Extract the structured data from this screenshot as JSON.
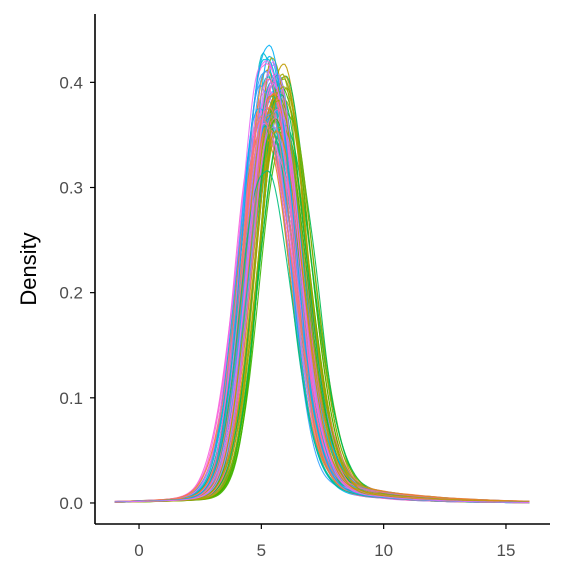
{
  "chart_data": {
    "type": "line",
    "title": "",
    "xlabel": "",
    "ylabel": "Density",
    "xlim": [
      -1.8,
      16.8
    ],
    "ylim": [
      -0.02,
      0.465
    ],
    "x_ticks": [
      0,
      5,
      10,
      15
    ],
    "y_ticks": [
      0.0,
      0.1,
      0.2,
      0.3,
      0.4
    ],
    "y_tick_labels": [
      "0.0",
      "0.1",
      "0.2",
      "0.3",
      "0.4"
    ],
    "grid": false,
    "legend": "none",
    "x_range_of_curves": [
      -1,
      16
    ],
    "mode_x_range": [
      5.0,
      5.9
    ],
    "peak_density_range": [
      0.31,
      0.44
    ],
    "representative_series": [
      {
        "color": "#F8766D",
        "mode": 5.2,
        "peak": 0.38,
        "x": [
          -1,
          0,
          1,
          2,
          3,
          4,
          5,
          5.2,
          6,
          7,
          8,
          9,
          10,
          11,
          12,
          13,
          14,
          15,
          16
        ],
        "y": [
          0.0,
          0.003,
          0.008,
          0.016,
          0.05,
          0.2,
          0.37,
          0.38,
          0.3,
          0.17,
          0.08,
          0.036,
          0.016,
          0.008,
          0.004,
          0.002,
          0.001,
          0.0,
          0.0
        ]
      },
      {
        "color": "#A3A500",
        "mode": 5.8,
        "peak": 0.395,
        "x": [
          -1,
          0,
          1,
          2,
          3,
          4,
          5,
          5.8,
          6,
          7,
          8,
          9,
          10,
          11,
          12,
          13,
          14,
          15,
          16
        ],
        "y": [
          0.0,
          0.002,
          0.006,
          0.012,
          0.03,
          0.1,
          0.28,
          0.395,
          0.38,
          0.24,
          0.12,
          0.052,
          0.025,
          0.013,
          0.006,
          0.003,
          0.001,
          0.0,
          0.0
        ]
      },
      {
        "color": "#00BF7D",
        "mode": 5.1,
        "peak": 0.32,
        "x": [
          -1,
          0,
          1,
          2,
          3,
          4,
          5,
          5.1,
          6,
          7,
          8,
          9,
          10,
          11,
          12,
          13,
          14,
          15,
          16
        ],
        "y": [
          0.0,
          0.004,
          0.01,
          0.022,
          0.07,
          0.21,
          0.31,
          0.32,
          0.27,
          0.16,
          0.08,
          0.04,
          0.02,
          0.01,
          0.005,
          0.002,
          0.001,
          0.0,
          0.0
        ]
      },
      {
        "color": "#00B0F6",
        "mode": 5.2,
        "peak": 0.44,
        "x": [
          -1,
          0,
          1,
          2,
          3,
          4,
          5,
          5.2,
          6,
          7,
          8,
          9,
          10,
          11,
          12,
          13,
          14,
          15,
          16
        ],
        "y": [
          0.0,
          0.002,
          0.006,
          0.013,
          0.04,
          0.18,
          0.42,
          0.44,
          0.31,
          0.15,
          0.065,
          0.03,
          0.014,
          0.007,
          0.003,
          0.001,
          0.0,
          0.0,
          0.0
        ]
      },
      {
        "color": "#E76BF3",
        "mode": 5.4,
        "peak": 0.4,
        "x": [
          -1,
          0,
          1,
          2,
          3,
          4,
          5,
          5.4,
          6,
          7,
          8,
          9,
          10,
          11,
          12,
          13,
          14,
          15,
          16
        ],
        "y": [
          0.0,
          0.002,
          0.007,
          0.014,
          0.04,
          0.17,
          0.37,
          0.4,
          0.34,
          0.18,
          0.085,
          0.038,
          0.018,
          0.009,
          0.004,
          0.002,
          0.001,
          0.0,
          0.0
        ]
      }
    ],
    "palette": [
      "#F8766D",
      "#E7861B",
      "#C09B00",
      "#A3A500",
      "#7CAE00",
      "#39B600",
      "#00BB4E",
      "#00BF7D",
      "#00C1A3",
      "#00BFC4",
      "#00BAE0",
      "#00B0F6",
      "#35A2FF",
      "#9590FF",
      "#C77CFF",
      "#E76BF3",
      "#FA62DB",
      "#FF62BC",
      "#FF6C91"
    ],
    "series_count_estimate": 80
  }
}
